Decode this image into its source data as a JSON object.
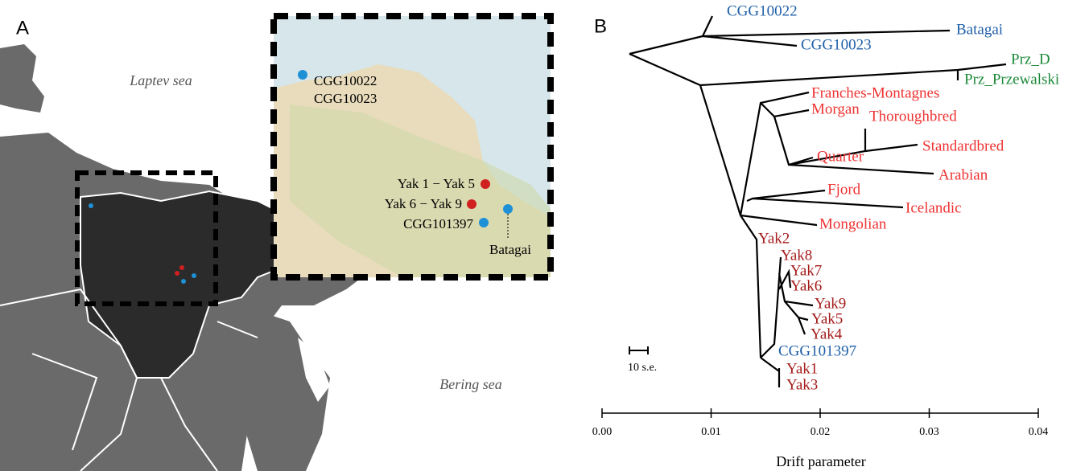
{
  "panel_a": {
    "label": "A",
    "seas": [
      "Laptev sea",
      "Bering sea"
    ],
    "sites": [
      "CGG10022",
      "CGG10023",
      "Yak 1 − Yak 5",
      "Yak 6 − Yak 9",
      "CGG101397",
      "Batagai"
    ]
  },
  "panel_b": {
    "label": "B",
    "leaves": [
      {
        "name": "CGG10022",
        "color": "#1f5fa8"
      },
      {
        "name": "Batagai",
        "color": "#1f5fa8"
      },
      {
        "name": "CGG10023",
        "color": "#1f5fa8"
      },
      {
        "name": "Prz_D",
        "color": "#1d8a3a"
      },
      {
        "name": "Prz_Przewalski",
        "color": "#1d8a3a"
      },
      {
        "name": "Franches-Montagnes",
        "color": "#ee3333"
      },
      {
        "name": "Morgan",
        "color": "#ee3333"
      },
      {
        "name": "Thoroughbred",
        "color": "#ee3333"
      },
      {
        "name": "Standardbred",
        "color": "#ee3333"
      },
      {
        "name": "Quarter",
        "color": "#ee3333"
      },
      {
        "name": "Arabian",
        "color": "#ee3333"
      },
      {
        "name": "Fjord",
        "color": "#ee3333"
      },
      {
        "name": "Icelandic",
        "color": "#ee3333"
      },
      {
        "name": "Mongolian",
        "color": "#ee3333"
      },
      {
        "name": "Yak2",
        "color": "#a41c1c"
      },
      {
        "name": "Yak8",
        "color": "#a41c1c"
      },
      {
        "name": "Yak7",
        "color": "#a41c1c"
      },
      {
        "name": "Yak6",
        "color": "#a41c1c"
      },
      {
        "name": "Yak9",
        "color": "#a41c1c"
      },
      {
        "name": "Yak5",
        "color": "#a41c1c"
      },
      {
        "name": "Yak4",
        "color": "#a41c1c"
      },
      {
        "name": "CGG101397",
        "color": "#1f5fa8"
      },
      {
        "name": "Yak1",
        "color": "#a41c1c"
      },
      {
        "name": "Yak3",
        "color": "#a41c1c"
      }
    ],
    "scale_label": "10 s.e.",
    "axis": {
      "title": "Drift parameter",
      "ticks": [
        "0.00",
        "0.01",
        "0.02",
        "0.03",
        "0.04"
      ]
    }
  }
}
